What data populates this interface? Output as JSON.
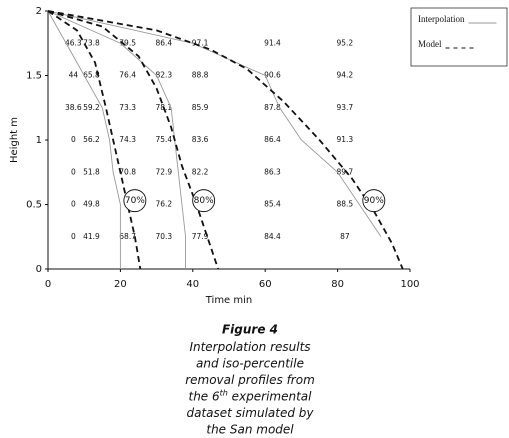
{
  "chart_data": {
    "type": "line",
    "x_label": "Time min",
    "y_label": "Height m",
    "xlim": [
      0,
      100
    ],
    "ylim": [
      0,
      2
    ],
    "xticks": [
      0,
      20,
      40,
      60,
      80,
      100
    ],
    "yticks": [
      0,
      0.5,
      1,
      1.5,
      2
    ],
    "series": [
      {
        "name": "Interpolation",
        "color": "#999999",
        "style": "solid",
        "curves": [
          {
            "x": [
              0,
              10,
              15,
              17,
              18,
              20,
              20,
              20
            ],
            "y": [
              2,
              1.5,
              1.25,
              1.0,
              0.75,
              0.5,
              0.25,
              0
            ]
          },
          {
            "x": [
              0,
              20,
              30,
              34,
              35,
              37,
              38,
              38
            ],
            "y": [
              2,
              1.75,
              1.5,
              1.25,
              1.0,
              0.5,
              0.25,
              0
            ]
          },
          {
            "x": [
              0,
              40,
              60,
              64,
              70,
              80,
              86,
              92
            ],
            "y": [
              2,
              1.75,
              1.5,
              1.25,
              1.0,
              0.75,
              0.5,
              0.25
            ]
          }
        ]
      },
      {
        "name": "Model",
        "color": "#111111",
        "style": "dashed",
        "curves": [
          {
            "x": [
              0,
              8,
              13,
              16,
              18,
              20,
              22,
              24,
              25.5
            ],
            "y": [
              2,
              1.85,
              1.6,
              1.25,
              1.0,
              0.75,
              0.5,
              0.25,
              0
            ]
          },
          {
            "x": [
              0,
              15,
              25,
              30,
              34,
              37,
              41,
              44,
              47
            ],
            "y": [
              2,
              1.88,
              1.65,
              1.4,
              1.1,
              0.8,
              0.5,
              0.25,
              0
            ]
          },
          {
            "x": [
              0,
              30,
              45,
              55,
              65,
              75,
              84,
              90,
              95,
              98
            ],
            "y": [
              2,
              1.85,
              1.7,
              1.55,
              1.3,
              1.0,
              0.7,
              0.45,
              0.2,
              0
            ]
          }
        ]
      }
    ],
    "cell_labels": {
      "x": [
        7,
        12,
        22,
        32,
        42,
        62,
        82
      ],
      "y": [
        1.75,
        1.5,
        1.25,
        1.0,
        0.75,
        0.5,
        0.25
      ],
      "values": [
        [
          46.3,
          73.8,
          79.5,
          86.4,
          97.1,
          91.4,
          95.2
        ],
        [
          44,
          65.8,
          76.4,
          82.3,
          88.8,
          90.6,
          94.2
        ],
        [
          38.6,
          59.2,
          73.3,
          78.1,
          85.9,
          87.8,
          93.7
        ],
        [
          0,
          56.2,
          74.3,
          75.4,
          83.6,
          86.4,
          91.3
        ],
        [
          0,
          51.8,
          70.8,
          72.9,
          82.2,
          86.3,
          89.7
        ],
        [
          0,
          49.8,
          null,
          76.2,
          null,
          85.4,
          88.5
        ],
        [
          0,
          41.9,
          68.7,
          70.3,
          77.9,
          84.4,
          87
        ]
      ]
    },
    "annotations": [
      {
        "text": "70%",
        "x": 24,
        "y": 0.53
      },
      {
        "text": "80%",
        "x": 43,
        "y": 0.53
      },
      {
        "text": "90%",
        "x": 90,
        "y": 0.53
      }
    ]
  },
  "caption": {
    "title": "Figure 4",
    "lines": [
      [
        "Interpolation results"
      ],
      [
        "and iso-percentile"
      ],
      [
        "removal profiles from"
      ],
      [
        "the 6",
        "th",
        " experimental"
      ],
      [
        "dataset simulated by"
      ],
      [
        "the San model"
      ]
    ]
  }
}
